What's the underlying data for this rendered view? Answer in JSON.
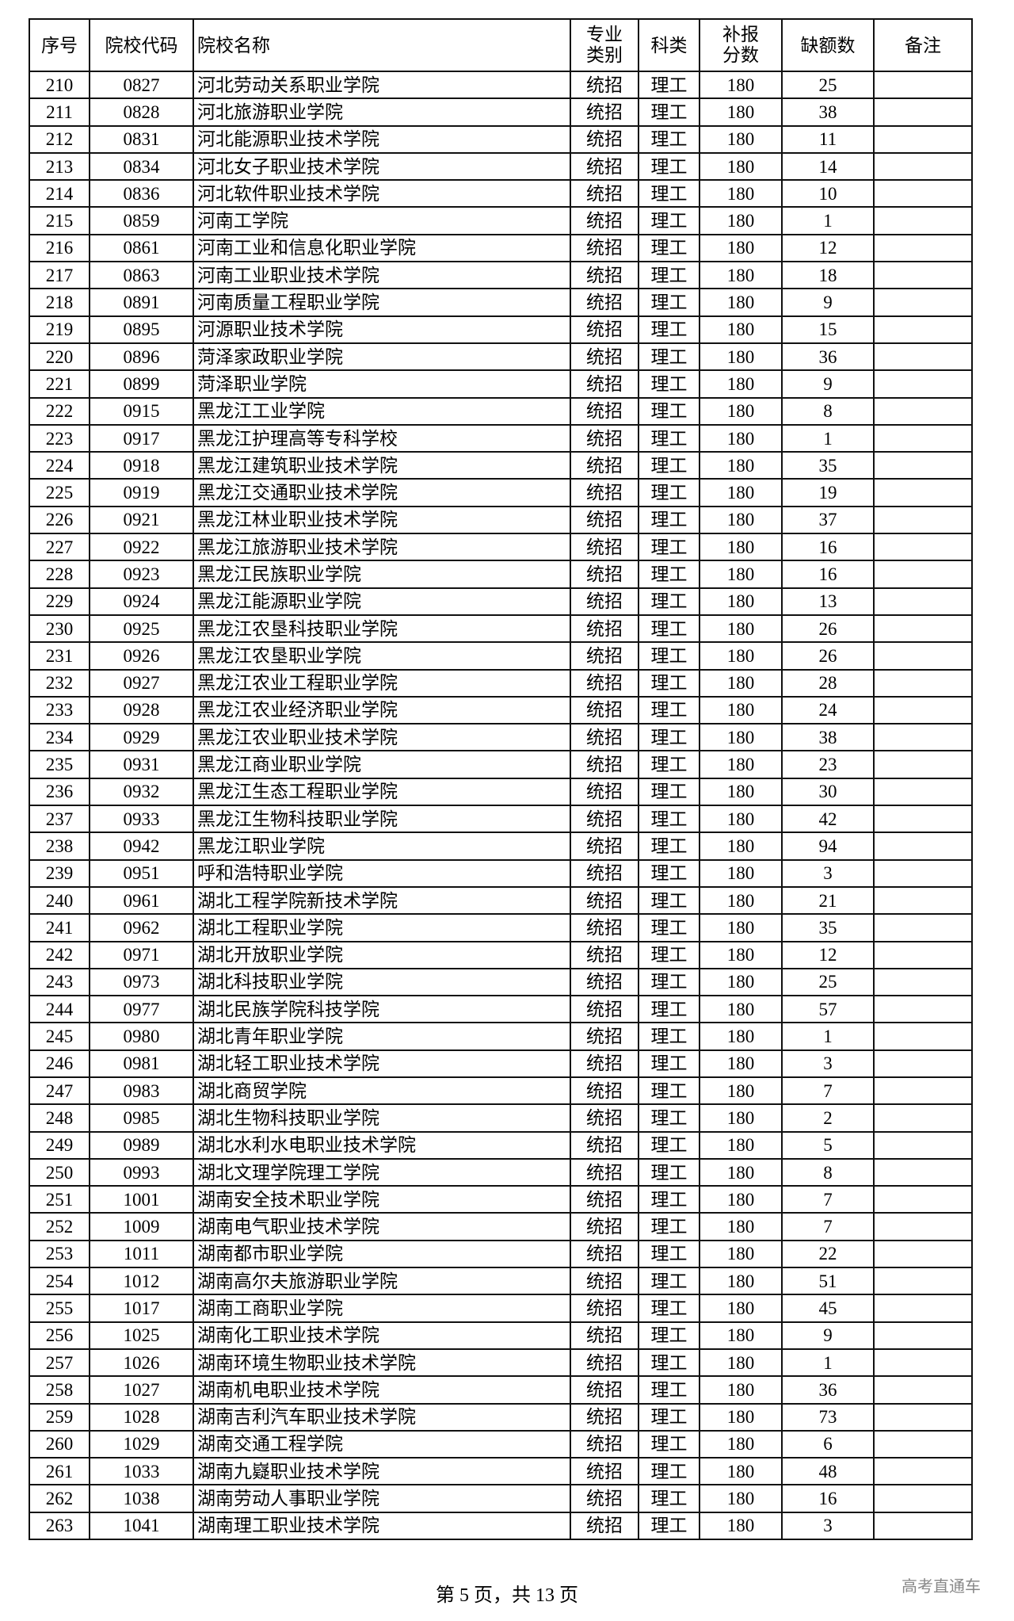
{
  "table": {
    "headers": [
      "序号",
      "院校代码",
      "院校名称",
      "专业\n类别",
      "科类",
      "补报\n分数",
      "缺额数",
      "备注"
    ],
    "rows": [
      [
        "210",
        "0827",
        "河北劳动关系职业学院",
        "统招",
        "理工",
        "180",
        "25",
        ""
      ],
      [
        "211",
        "0828",
        "河北旅游职业学院",
        "统招",
        "理工",
        "180",
        "38",
        ""
      ],
      [
        "212",
        "0831",
        "河北能源职业技术学院",
        "统招",
        "理工",
        "180",
        "11",
        ""
      ],
      [
        "213",
        "0834",
        "河北女子职业技术学院",
        "统招",
        "理工",
        "180",
        "14",
        ""
      ],
      [
        "214",
        "0836",
        "河北软件职业技术学院",
        "统招",
        "理工",
        "180",
        "10",
        ""
      ],
      [
        "215",
        "0859",
        "河南工学院",
        "统招",
        "理工",
        "180",
        "1",
        ""
      ],
      [
        "216",
        "0861",
        "河南工业和信息化职业学院",
        "统招",
        "理工",
        "180",
        "12",
        ""
      ],
      [
        "217",
        "0863",
        "河南工业职业技术学院",
        "统招",
        "理工",
        "180",
        "18",
        ""
      ],
      [
        "218",
        "0891",
        "河南质量工程职业学院",
        "统招",
        "理工",
        "180",
        "9",
        ""
      ],
      [
        "219",
        "0895",
        "河源职业技术学院",
        "统招",
        "理工",
        "180",
        "15",
        ""
      ],
      [
        "220",
        "0896",
        "菏泽家政职业学院",
        "统招",
        "理工",
        "180",
        "36",
        ""
      ],
      [
        "221",
        "0899",
        "菏泽职业学院",
        "统招",
        "理工",
        "180",
        "9",
        ""
      ],
      [
        "222",
        "0915",
        "黑龙江工业学院",
        "统招",
        "理工",
        "180",
        "8",
        ""
      ],
      [
        "223",
        "0917",
        "黑龙江护理高等专科学校",
        "统招",
        "理工",
        "180",
        "1",
        ""
      ],
      [
        "224",
        "0918",
        "黑龙江建筑职业技术学院",
        "统招",
        "理工",
        "180",
        "35",
        ""
      ],
      [
        "225",
        "0919",
        "黑龙江交通职业技术学院",
        "统招",
        "理工",
        "180",
        "19",
        ""
      ],
      [
        "226",
        "0921",
        "黑龙江林业职业技术学院",
        "统招",
        "理工",
        "180",
        "37",
        ""
      ],
      [
        "227",
        "0922",
        "黑龙江旅游职业技术学院",
        "统招",
        "理工",
        "180",
        "16",
        ""
      ],
      [
        "228",
        "0923",
        "黑龙江民族职业学院",
        "统招",
        "理工",
        "180",
        "16",
        ""
      ],
      [
        "229",
        "0924",
        "黑龙江能源职业学院",
        "统招",
        "理工",
        "180",
        "13",
        ""
      ],
      [
        "230",
        "0925",
        "黑龙江农垦科技职业学院",
        "统招",
        "理工",
        "180",
        "26",
        ""
      ],
      [
        "231",
        "0926",
        "黑龙江农垦职业学院",
        "统招",
        "理工",
        "180",
        "26",
        ""
      ],
      [
        "232",
        "0927",
        "黑龙江农业工程职业学院",
        "统招",
        "理工",
        "180",
        "28",
        ""
      ],
      [
        "233",
        "0928",
        "黑龙江农业经济职业学院",
        "统招",
        "理工",
        "180",
        "24",
        ""
      ],
      [
        "234",
        "0929",
        "黑龙江农业职业技术学院",
        "统招",
        "理工",
        "180",
        "38",
        ""
      ],
      [
        "235",
        "0931",
        "黑龙江商业职业学院",
        "统招",
        "理工",
        "180",
        "23",
        ""
      ],
      [
        "236",
        "0932",
        "黑龙江生态工程职业学院",
        "统招",
        "理工",
        "180",
        "30",
        ""
      ],
      [
        "237",
        "0933",
        "黑龙江生物科技职业学院",
        "统招",
        "理工",
        "180",
        "42",
        ""
      ],
      [
        "238",
        "0942",
        "黑龙江职业学院",
        "统招",
        "理工",
        "180",
        "94",
        ""
      ],
      [
        "239",
        "0951",
        "呼和浩特职业学院",
        "统招",
        "理工",
        "180",
        "3",
        ""
      ],
      [
        "240",
        "0961",
        "湖北工程学院新技术学院",
        "统招",
        "理工",
        "180",
        "21",
        ""
      ],
      [
        "241",
        "0962",
        "湖北工程职业学院",
        "统招",
        "理工",
        "180",
        "35",
        ""
      ],
      [
        "242",
        "0971",
        "湖北开放职业学院",
        "统招",
        "理工",
        "180",
        "12",
        ""
      ],
      [
        "243",
        "0973",
        "湖北科技职业学院",
        "统招",
        "理工",
        "180",
        "25",
        ""
      ],
      [
        "244",
        "0977",
        "湖北民族学院科技学院",
        "统招",
        "理工",
        "180",
        "57",
        ""
      ],
      [
        "245",
        "0980",
        "湖北青年职业学院",
        "统招",
        "理工",
        "180",
        "1",
        ""
      ],
      [
        "246",
        "0981",
        "湖北轻工职业技术学院",
        "统招",
        "理工",
        "180",
        "3",
        ""
      ],
      [
        "247",
        "0983",
        "湖北商贸学院",
        "统招",
        "理工",
        "180",
        "7",
        ""
      ],
      [
        "248",
        "0985",
        "湖北生物科技职业学院",
        "统招",
        "理工",
        "180",
        "2",
        ""
      ],
      [
        "249",
        "0989",
        "湖北水利水电职业技术学院",
        "统招",
        "理工",
        "180",
        "5",
        ""
      ],
      [
        "250",
        "0993",
        "湖北文理学院理工学院",
        "统招",
        "理工",
        "180",
        "8",
        ""
      ],
      [
        "251",
        "1001",
        "湖南安全技术职业学院",
        "统招",
        "理工",
        "180",
        "7",
        ""
      ],
      [
        "252",
        "1009",
        "湖南电气职业技术学院",
        "统招",
        "理工",
        "180",
        "7",
        ""
      ],
      [
        "253",
        "1011",
        "湖南都市职业学院",
        "统招",
        "理工",
        "180",
        "22",
        ""
      ],
      [
        "254",
        "1012",
        "湖南高尔夫旅游职业学院",
        "统招",
        "理工",
        "180",
        "51",
        ""
      ],
      [
        "255",
        "1017",
        "湖南工商职业学院",
        "统招",
        "理工",
        "180",
        "45",
        ""
      ],
      [
        "256",
        "1025",
        "湖南化工职业技术学院",
        "统招",
        "理工",
        "180",
        "9",
        ""
      ],
      [
        "257",
        "1026",
        "湖南环境生物职业技术学院",
        "统招",
        "理工",
        "180",
        "1",
        ""
      ],
      [
        "258",
        "1027",
        "湖南机电职业技术学院",
        "统招",
        "理工",
        "180",
        "36",
        ""
      ],
      [
        "259",
        "1028",
        "湖南吉利汽车职业技术学院",
        "统招",
        "理工",
        "180",
        "73",
        ""
      ],
      [
        "260",
        "1029",
        "湖南交通工程学院",
        "统招",
        "理工",
        "180",
        "6",
        ""
      ],
      [
        "261",
        "1033",
        "湖南九嶷职业技术学院",
        "统招",
        "理工",
        "180",
        "48",
        ""
      ],
      [
        "262",
        "1038",
        "湖南劳动人事职业学院",
        "统招",
        "理工",
        "180",
        "16",
        ""
      ],
      [
        "263",
        "1041",
        "湖南理工职业技术学院",
        "统招",
        "理工",
        "180",
        "3",
        ""
      ]
    ]
  },
  "footer": {
    "page_label": "第 5 页，共 13 页"
  },
  "watermark": "高考直通车"
}
